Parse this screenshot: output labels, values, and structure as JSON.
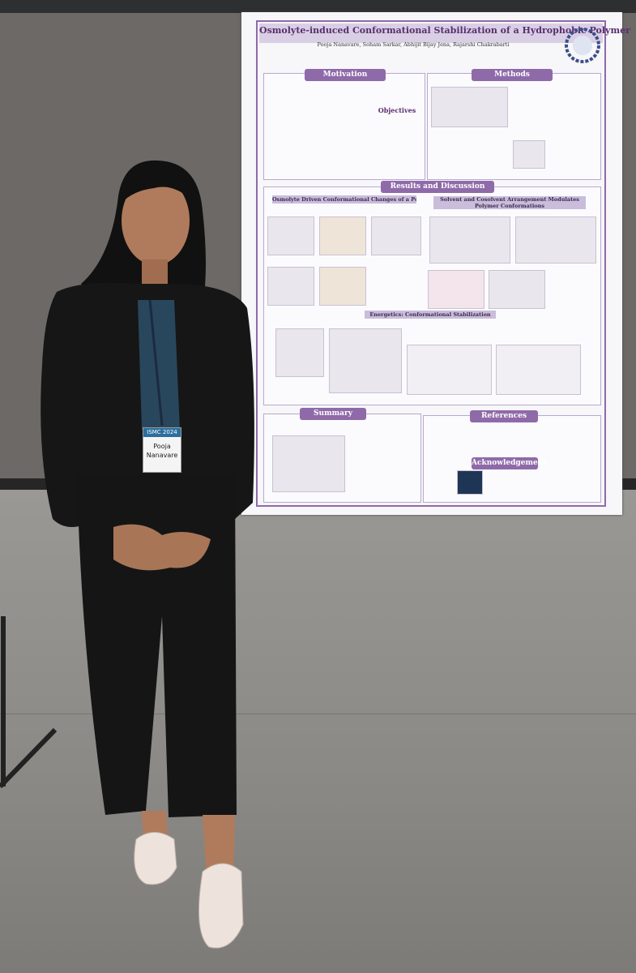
{
  "poster": {
    "title": "Osmolyte-induced Conformational Stabilization of a Hydrophobic Polymer",
    "authors": "Pooja Nanavare, Soham Sarkar, Abhijit Bijay Jena, Rajarshi Chakrabarti",
    "sections": {
      "motivation": "Motivation",
      "methods": "Methods",
      "objectives": "Objectives",
      "results": "Results and Discussion",
      "osmolyte": "Osmolyte Driven Conformational Changes of a Polymer",
      "solvent": "Solvent and Cosolvent Arrangement Modulates Polymer Conformations",
      "energetics": "Energetics: Conformational Stabilization",
      "summary": "Summary",
      "references": "References",
      "acknowledgement": "Acknowledgement"
    }
  },
  "badge": {
    "event": "ISMC 2024",
    "name": "Pooja Nanavare"
  }
}
